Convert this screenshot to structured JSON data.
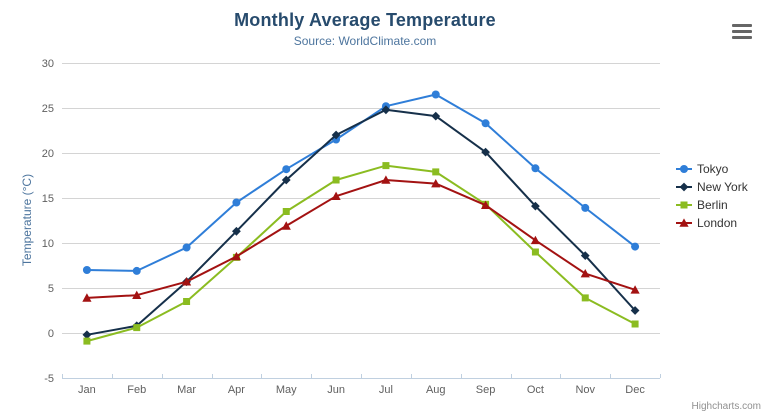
{
  "icons": {
    "menu": "hamburger-icon"
  },
  "credits": "Highcharts.com",
  "chart_data": {
    "type": "line",
    "title": "Monthly Average Temperature",
    "subtitle": "Source: WorldClimate.com",
    "xlabel": "",
    "ylabel": "Temperature (°C)",
    "ylim": [
      -5,
      30
    ],
    "yticks": [
      -5,
      0,
      5,
      10,
      15,
      20,
      25,
      30
    ],
    "grid": true,
    "legend_position": "right",
    "categories": [
      "Jan",
      "Feb",
      "Mar",
      "Apr",
      "May",
      "Jun",
      "Jul",
      "Aug",
      "Sep",
      "Oct",
      "Nov",
      "Dec"
    ],
    "series": [
      {
        "name": "Tokyo",
        "color": "#2f7ed8",
        "marker": "circle",
        "values": [
          7.0,
          6.9,
          9.5,
          14.5,
          18.2,
          21.5,
          25.2,
          26.5,
          23.3,
          18.3,
          13.9,
          9.6
        ]
      },
      {
        "name": "New York",
        "color": "#16304a",
        "marker": "diamond",
        "values": [
          -0.2,
          0.8,
          5.7,
          11.3,
          17.0,
          22.0,
          24.8,
          24.1,
          20.1,
          14.1,
          8.6,
          2.5
        ]
      },
      {
        "name": "Berlin",
        "color": "#8bbc21",
        "marker": "square",
        "values": [
          -0.9,
          0.6,
          3.5,
          8.4,
          13.5,
          17.0,
          18.6,
          17.9,
          14.3,
          9.0,
          3.9,
          1.0
        ]
      },
      {
        "name": "London",
        "color": "#a31212",
        "marker": "triangle",
        "values": [
          3.9,
          4.2,
          5.7,
          8.5,
          11.9,
          15.2,
          17.0,
          16.6,
          14.2,
          10.3,
          6.6,
          4.8
        ]
      }
    ],
    "axis_colors": {
      "grid_line": "#d4d4d4",
      "axis_line": "#c0d0e0",
      "tick_label": "#606060"
    }
  }
}
